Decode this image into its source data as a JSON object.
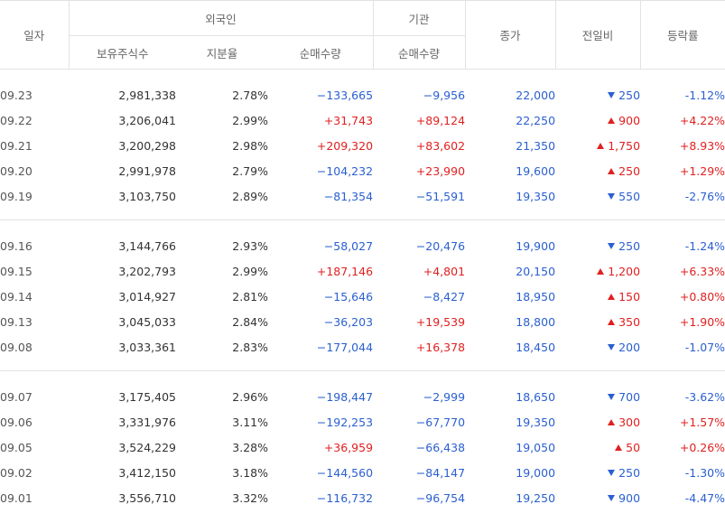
{
  "header": {
    "date": "일자",
    "foreign": "외국인",
    "institution": "기관",
    "close": "종가",
    "change": "전일비",
    "rate": "등락률",
    "holdings": "보유주식수",
    "share": "지분율",
    "foreign_net": "순매수량",
    "inst_net": "순매수량"
  },
  "colors": {
    "up": "#e02020",
    "down": "#2a5fd0"
  },
  "groups": [
    [
      {
        "date": "09.23",
        "holdings": "2,981,338",
        "share": "2.78%",
        "foreign_net": "−133,665",
        "foreign_dir": "down",
        "inst_net": "−9,956",
        "inst_dir": "down",
        "close": "22,000",
        "change_dir": "down",
        "change": "250",
        "rate": "-1.12%",
        "rate_dir": "down"
      },
      {
        "date": "09.22",
        "holdings": "3,206,041",
        "share": "2.99%",
        "foreign_net": "+31,743",
        "foreign_dir": "up",
        "inst_net": "+89,124",
        "inst_dir": "up",
        "close": "22,250",
        "change_dir": "up",
        "change": "900",
        "rate": "+4.22%",
        "rate_dir": "up"
      },
      {
        "date": "09.21",
        "holdings": "3,200,298",
        "share": "2.98%",
        "foreign_net": "+209,320",
        "foreign_dir": "up",
        "inst_net": "+83,602",
        "inst_dir": "up",
        "close": "21,350",
        "change_dir": "up",
        "change": "1,750",
        "rate": "+8.93%",
        "rate_dir": "up"
      },
      {
        "date": "09.20",
        "holdings": "2,991,978",
        "share": "2.79%",
        "foreign_net": "−104,232",
        "foreign_dir": "down",
        "inst_net": "+23,990",
        "inst_dir": "up",
        "close": "19,600",
        "change_dir": "up",
        "change": "250",
        "rate": "+1.29%",
        "rate_dir": "up"
      },
      {
        "date": "09.19",
        "holdings": "3,103,750",
        "share": "2.89%",
        "foreign_net": "−81,354",
        "foreign_dir": "down",
        "inst_net": "−51,591",
        "inst_dir": "down",
        "close": "19,350",
        "change_dir": "down",
        "change": "550",
        "rate": "-2.76%",
        "rate_dir": "down"
      }
    ],
    [
      {
        "date": "09.16",
        "holdings": "3,144,766",
        "share": "2.93%",
        "foreign_net": "−58,027",
        "foreign_dir": "down",
        "inst_net": "−20,476",
        "inst_dir": "down",
        "close": "19,900",
        "change_dir": "down",
        "change": "250",
        "rate": "-1.24%",
        "rate_dir": "down"
      },
      {
        "date": "09.15",
        "holdings": "3,202,793",
        "share": "2.99%",
        "foreign_net": "+187,146",
        "foreign_dir": "up",
        "inst_net": "+4,801",
        "inst_dir": "up",
        "close": "20,150",
        "change_dir": "up",
        "change": "1,200",
        "rate": "+6.33%",
        "rate_dir": "up"
      },
      {
        "date": "09.14",
        "holdings": "3,014,927",
        "share": "2.81%",
        "foreign_net": "−15,646",
        "foreign_dir": "down",
        "inst_net": "−8,427",
        "inst_dir": "down",
        "close": "18,950",
        "change_dir": "up",
        "change": "150",
        "rate": "+0.80%",
        "rate_dir": "up"
      },
      {
        "date": "09.13",
        "holdings": "3,045,033",
        "share": "2.84%",
        "foreign_net": "−36,203",
        "foreign_dir": "down",
        "inst_net": "+19,539",
        "inst_dir": "up",
        "close": "18,800",
        "change_dir": "up",
        "change": "350",
        "rate": "+1.90%",
        "rate_dir": "up"
      },
      {
        "date": "09.08",
        "holdings": "3,033,361",
        "share": "2.83%",
        "foreign_net": "−177,044",
        "foreign_dir": "down",
        "inst_net": "+16,378",
        "inst_dir": "up",
        "close": "18,450",
        "change_dir": "down",
        "change": "200",
        "rate": "-1.07%",
        "rate_dir": "down"
      }
    ],
    [
      {
        "date": "09.07",
        "holdings": "3,175,405",
        "share": "2.96%",
        "foreign_net": "−198,447",
        "foreign_dir": "down",
        "inst_net": "−2,999",
        "inst_dir": "down",
        "close": "18,650",
        "change_dir": "down",
        "change": "700",
        "rate": "-3.62%",
        "rate_dir": "down"
      },
      {
        "date": "09.06",
        "holdings": "3,331,976",
        "share": "3.11%",
        "foreign_net": "−192,253",
        "foreign_dir": "down",
        "inst_net": "−67,770",
        "inst_dir": "down",
        "close": "19,350",
        "change_dir": "up",
        "change": "300",
        "rate": "+1.57%",
        "rate_dir": "up"
      },
      {
        "date": "09.05",
        "holdings": "3,524,229",
        "share": "3.28%",
        "foreign_net": "+36,959",
        "foreign_dir": "up",
        "inst_net": "−66,438",
        "inst_dir": "down",
        "close": "19,050",
        "change_dir": "up",
        "change": "50",
        "rate": "+0.26%",
        "rate_dir": "up"
      },
      {
        "date": "09.02",
        "holdings": "3,412,150",
        "share": "3.18%",
        "foreign_net": "−144,560",
        "foreign_dir": "down",
        "inst_net": "−84,147",
        "inst_dir": "down",
        "close": "19,000",
        "change_dir": "down",
        "change": "250",
        "rate": "-1.30%",
        "rate_dir": "down"
      },
      {
        "date": "09.01",
        "holdings": "3,556,710",
        "share": "3.32%",
        "foreign_net": "−116,732",
        "foreign_dir": "down",
        "inst_net": "−96,754",
        "inst_dir": "down",
        "close": "19,250",
        "change_dir": "down",
        "change": "900",
        "rate": "-4.47%",
        "rate_dir": "down"
      }
    ]
  ]
}
